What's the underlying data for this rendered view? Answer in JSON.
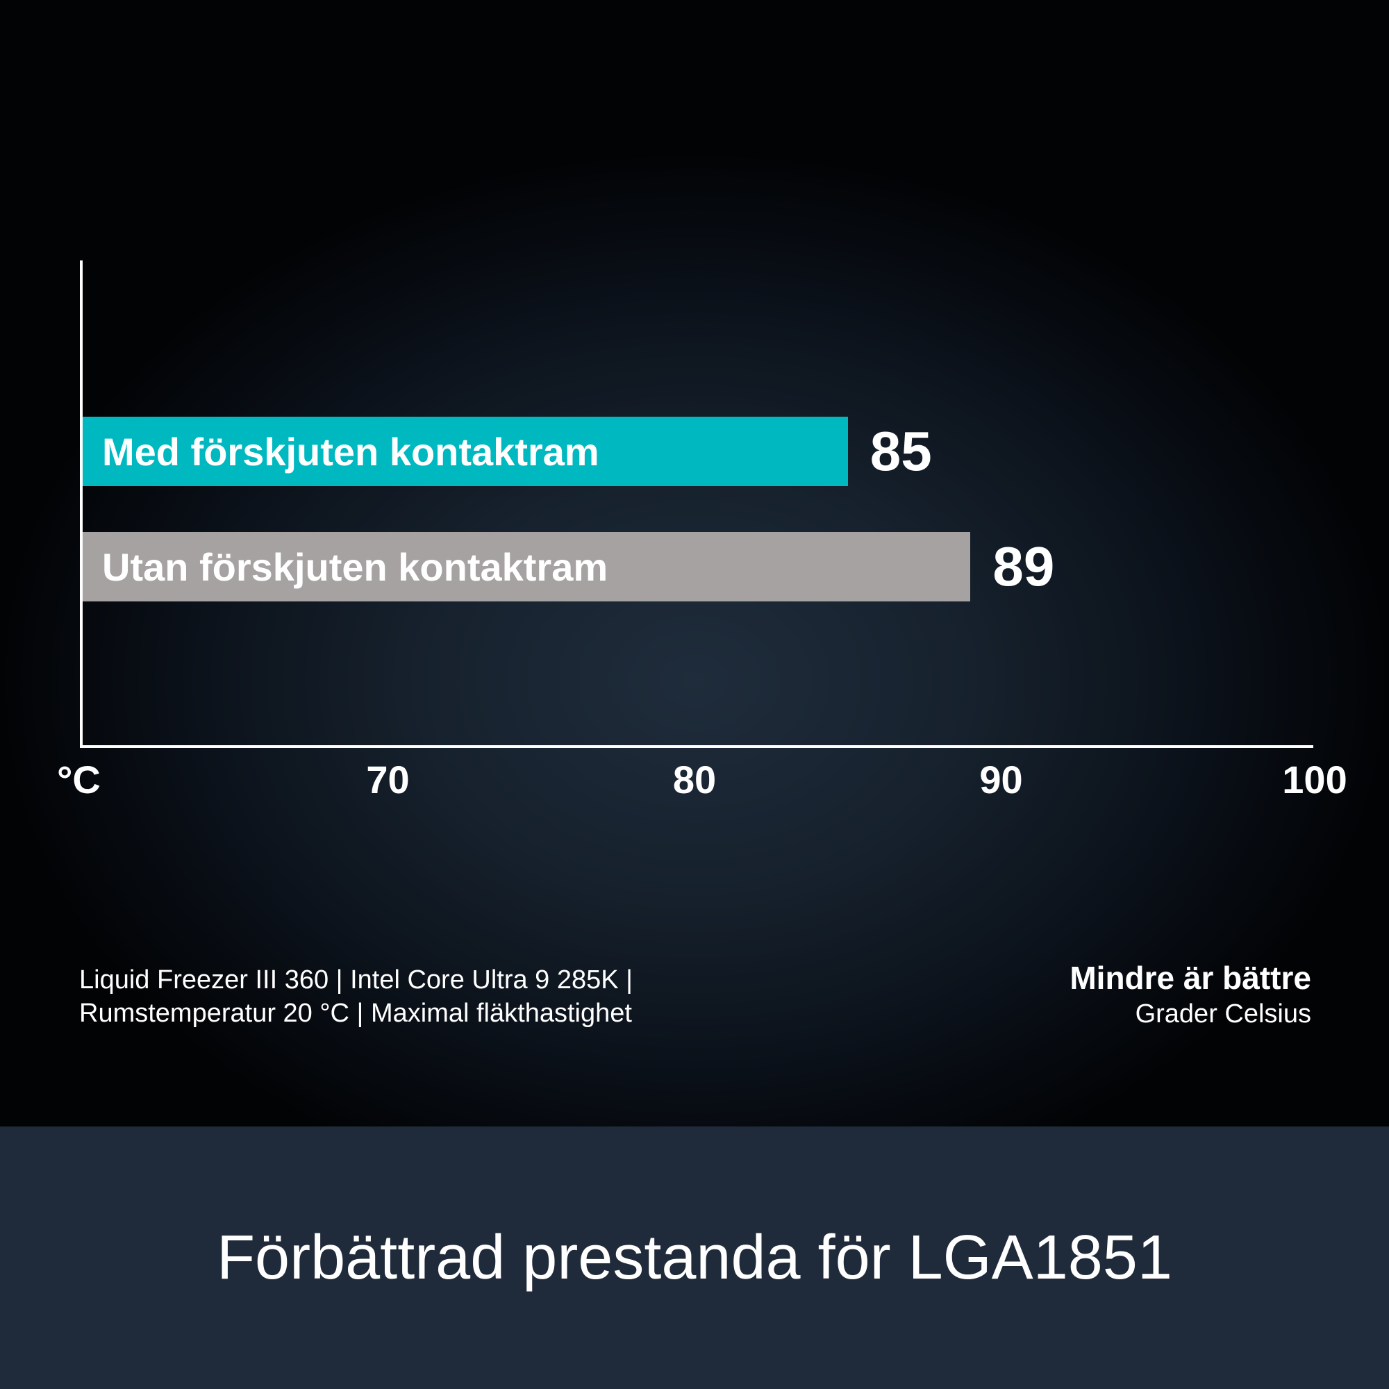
{
  "chart_data": {
    "type": "bar",
    "orientation": "horizontal",
    "categories": [
      "Med förskjuten kontaktram",
      "Utan förskjuten kontaktram"
    ],
    "values": [
      85,
      89
    ],
    "colors": [
      "#00b9c0",
      "#a6a2a1"
    ],
    "xlim": [
      60,
      100
    ],
    "xticks": [
      70,
      80,
      90,
      100
    ],
    "unit_label": "°C",
    "grid": false
  },
  "footnote": {
    "line1": "Liquid Freezer III 360 | Intel Core Ultra 9 285K |",
    "line2": "Rumstemperatur 20 °C | Maximal fläkthastighet"
  },
  "legend_note": {
    "title": "Mindre är bättre",
    "subtitle": "Grader Celsius"
  },
  "banner": {
    "text": "Förbättrad prestanda för LGA1851"
  }
}
